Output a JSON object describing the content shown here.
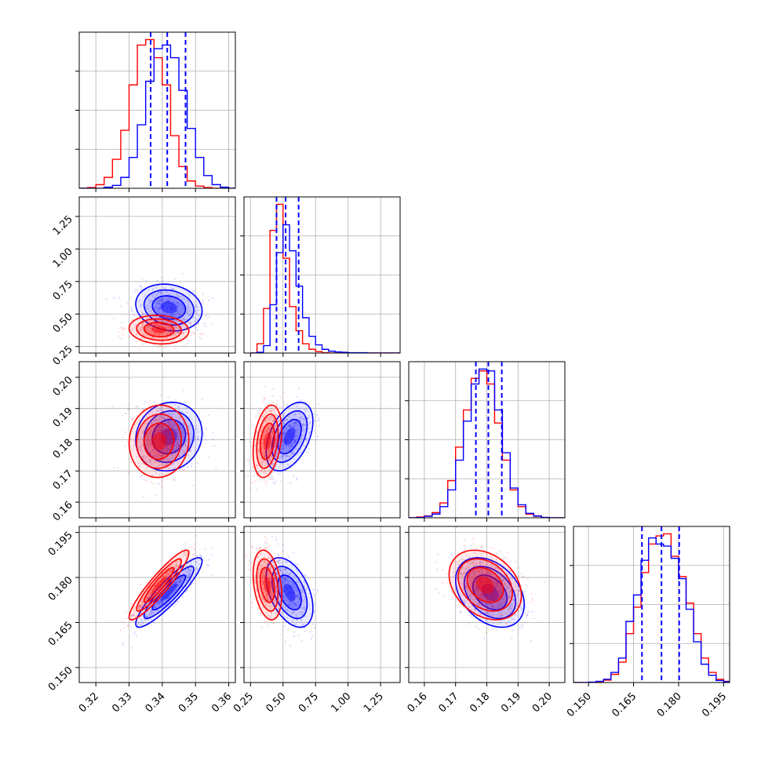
{
  "chart_data": {
    "type": "corner",
    "grid": true,
    "colors": {
      "series_a": "#0000ff",
      "series_b": "#ff0000"
    },
    "parameters": [
      {
        "range": [
          0.315,
          0.362
        ],
        "ticks": [
          "0.32",
          "0.33",
          "0.34",
          "0.35",
          "0.36"
        ]
      },
      {
        "range": [
          0.2,
          1.4
        ],
        "ticks": [
          "0.25",
          "0.50",
          "0.75",
          "1.00",
          "1.25"
        ]
      },
      {
        "range": [
          0.155,
          0.205
        ],
        "ticks": [
          "0.16",
          "0.17",
          "0.18",
          "0.19",
          "0.20"
        ]
      },
      {
        "range": [
          0.145,
          0.197
        ],
        "ticks": [
          "0.150",
          "0.165",
          "0.180",
          "0.195"
        ]
      }
    ],
    "quantiles": {
      "series_a": [
        [
          0.3365,
          0.3415,
          0.347
        ],
        [
          0.45,
          0.52,
          0.62
        ],
        [
          0.1765,
          0.1805,
          0.1848
        ],
        [
          0.1678,
          0.1743,
          0.1802
        ]
      ]
    },
    "series": [
      {
        "key": "series_a",
        "means": [
          0.342,
          0.55,
          0.181,
          0.175
        ],
        "sds": [
          0.005,
          0.09,
          0.0055,
          0.0058
        ],
        "correlations": [
          [
            0,
            1,
            -0.15
          ],
          [
            0,
            2,
            0.1
          ],
          [
            0,
            3,
            0.9
          ],
          [
            1,
            2,
            0.45
          ],
          [
            1,
            3,
            -0.45
          ],
          [
            2,
            3,
            -0.35
          ]
        ],
        "histograms": [
          {
            "edges": [
              0.315,
              0.3175,
              0.32,
              0.3225,
              0.325,
              0.3275,
              0.33,
              0.3325,
              0.335,
              0.3375,
              0.34,
              0.3425,
              0.345,
              0.3475,
              0.35,
              0.3525,
              0.355,
              0.3575,
              0.36,
              0.362
            ],
            "counts": [
              0,
              0,
              0,
              3,
              8,
              30,
              85,
              175,
              295,
              385,
              395,
              360,
              270,
              165,
              85,
              35,
              10,
              3,
              0
            ]
          },
          {
            "edges": [
              0.25,
              0.3,
              0.35,
              0.4,
              0.45,
              0.5,
              0.55,
              0.6,
              0.65,
              0.7,
              0.75,
              0.8,
              0.85,
              0.9,
              0.95,
              1.0,
              1.05,
              1.1,
              1.15,
              1.2,
              1.3,
              1.4
            ],
            "counts": [
              0,
              2,
              20,
              130,
              270,
              345,
              275,
              180,
              95,
              45,
              22,
              10,
              5,
              3,
              2,
              1,
              1,
              1,
              0,
              0,
              0
            ]
          },
          {
            "edges": [
              0.155,
              0.1575,
              0.16,
              0.1625,
              0.165,
              0.1675,
              0.17,
              0.1725,
              0.175,
              0.1775,
              0.18,
              0.1825,
              0.185,
              0.1875,
              0.19,
              0.1925,
              0.195,
              0.1975,
              0.2,
              0.205
            ],
            "counts": [
              0,
              1,
              4,
              10,
              30,
              75,
              155,
              260,
              360,
              400,
              395,
              290,
              175,
              80,
              35,
              12,
              5,
              1,
              0
            ]
          },
          {
            "edges": [
              0.145,
              0.1475,
              0.15,
              0.1525,
              0.155,
              0.1575,
              0.16,
              0.1625,
              0.165,
              0.1675,
              0.17,
              0.1725,
              0.175,
              0.1775,
              0.18,
              0.1825,
              0.185,
              0.1875,
              0.19,
              0.1925,
              0.195,
              0.197
            ],
            "counts": [
              0,
              0,
              1,
              3,
              8,
              25,
              60,
              150,
              215,
              300,
              355,
              340,
              335,
              305,
              255,
              180,
              100,
              45,
              18,
              5,
              2
            ]
          }
        ]
      },
      {
        "key": "series_b",
        "means": [
          0.339,
          0.38,
          0.1795,
          0.1775
        ],
        "sds": [
          0.0045,
          0.055,
          0.0058,
          0.0058
        ],
        "correlations": [
          [
            0,
            1,
            -0.1
          ],
          [
            0,
            2,
            0.05
          ],
          [
            0,
            3,
            0.92
          ],
          [
            1,
            2,
            0.3
          ],
          [
            1,
            3,
            -0.3
          ],
          [
            2,
            3,
            -0.3
          ]
        ],
        "histograms": [
          {
            "edges": [
              0.315,
              0.3175,
              0.32,
              0.3225,
              0.325,
              0.3275,
              0.33,
              0.3325,
              0.335,
              0.3375,
              0.34,
              0.3425,
              0.345,
              0.3475,
              0.35,
              0.3525,
              0.355,
              0.3575,
              0.36,
              0.362
            ],
            "counts": [
              0,
              2,
              10,
              30,
              80,
              160,
              285,
              395,
              410,
              360,
              285,
              145,
              60,
              20,
              6,
              2,
              0,
              0,
              0
            ]
          },
          {
            "edges": [
              0.25,
              0.3,
              0.35,
              0.4,
              0.45,
              0.5,
              0.55,
              0.6,
              0.65,
              0.7,
              0.75,
              0.8,
              0.85,
              0.9,
              0.95,
              1.0,
              1.05,
              1.1,
              1.15,
              1.2,
              1.3,
              1.4
            ],
            "counts": [
              0,
              25,
              120,
              330,
              400,
              255,
              125,
              60,
              25,
              10,
              4,
              1,
              0,
              0,
              0,
              0,
              0,
              0,
              0,
              0,
              0
            ]
          },
          {
            "edges": [
              0.155,
              0.1575,
              0.16,
              0.1625,
              0.165,
              0.1675,
              0.17,
              0.1725,
              0.175,
              0.1775,
              0.18,
              0.1825,
              0.185,
              0.1875,
              0.19,
              0.1925,
              0.195,
              0.1975,
              0.2,
              0.205
            ],
            "counts": [
              0,
              2,
              5,
              14,
              40,
              100,
              190,
              290,
              375,
              395,
              360,
              255,
              155,
              75,
              30,
              10,
              4,
              1,
              0
            ]
          },
          {
            "edges": [
              0.145,
              0.1475,
              0.15,
              0.1525,
              0.155,
              0.1575,
              0.16,
              0.1625,
              0.165,
              0.1675,
              0.17,
              0.1725,
              0.175,
              0.1775,
              0.18,
              0.1825,
              0.185,
              0.1875,
              0.19,
              0.1925,
              0.195,
              0.197
            ],
            "counts": [
              0,
              0,
              0,
              2,
              6,
              20,
              50,
              120,
              185,
              270,
              340,
              360,
              365,
              310,
              260,
              195,
              120,
              60,
              25,
              8,
              3
            ]
          }
        ]
      }
    ]
  }
}
